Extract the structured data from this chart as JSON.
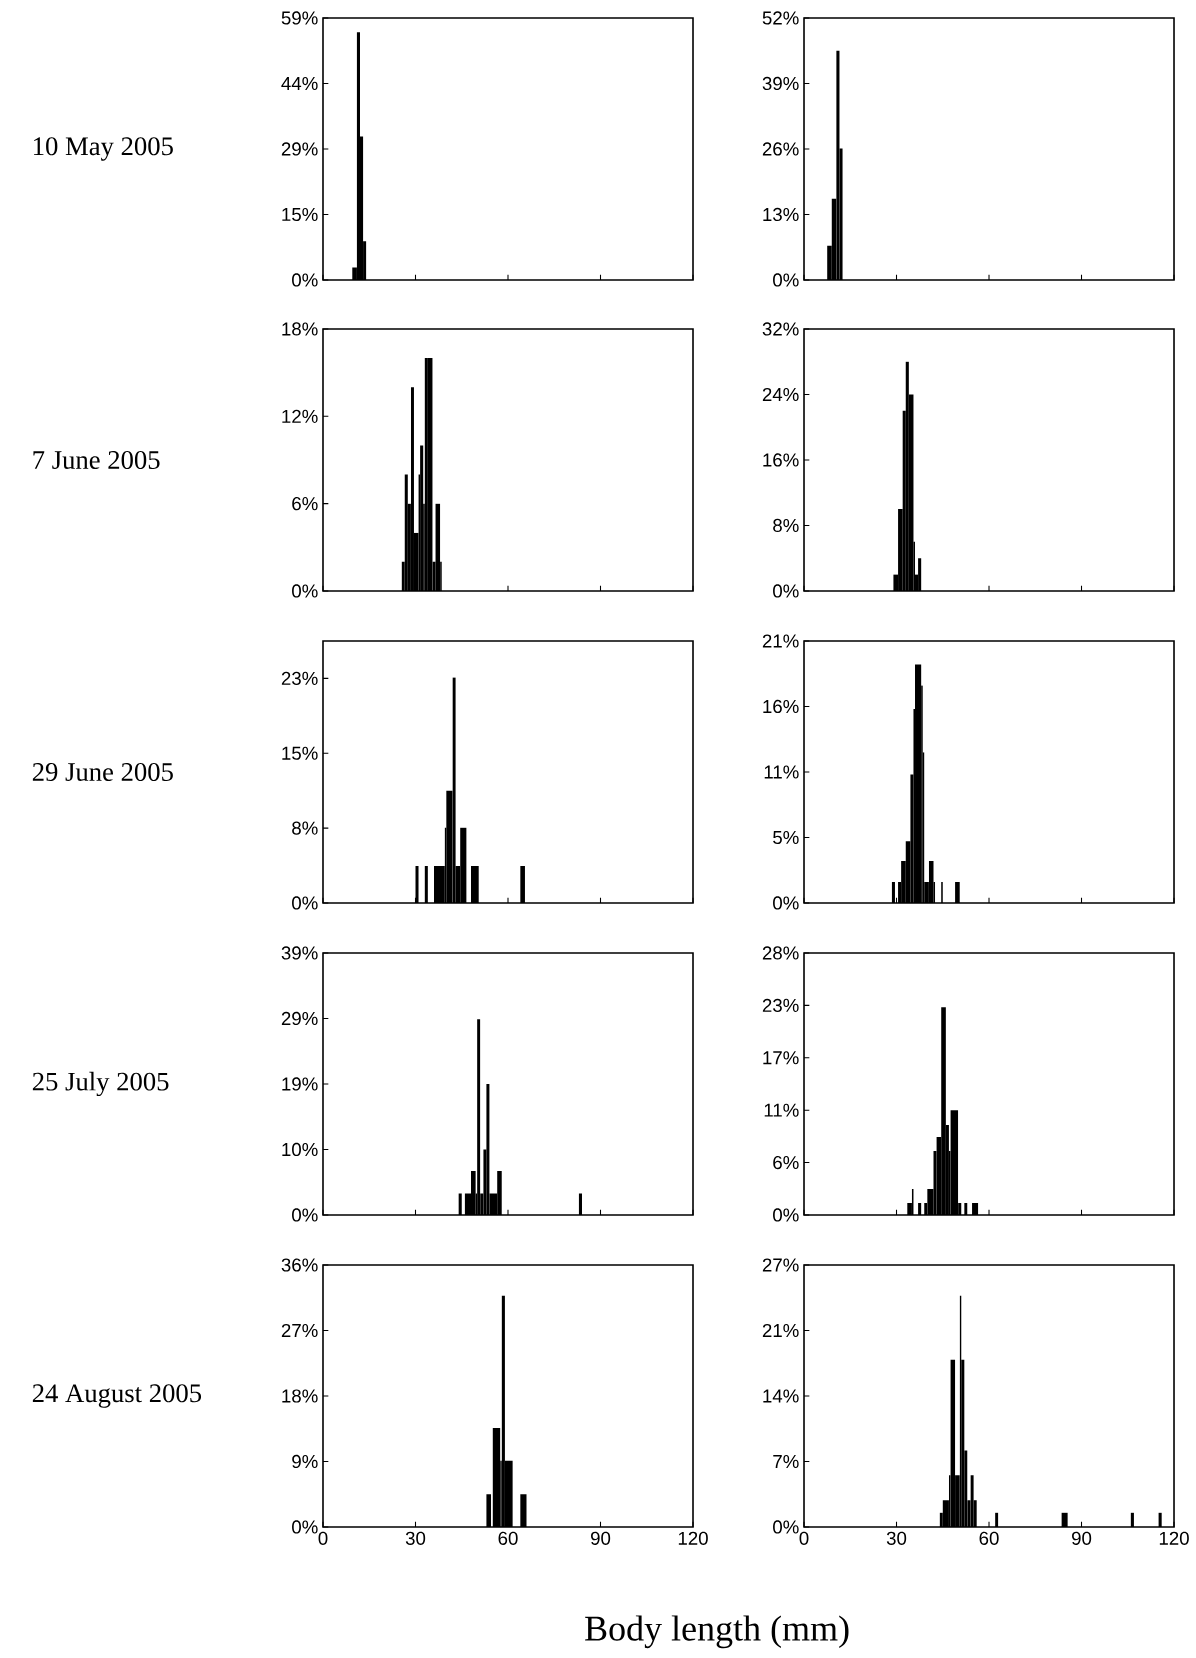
{
  "chart_data": [
    {
      "type": "histogram",
      "ylabel": "10 May 2005",
      "color": "#000000",
      "bins": [
        9.5,
        11,
        12,
        13,
        14
      ],
      "values": [
        2.8,
        55.6,
        32.2,
        8.7
      ],
      "xlim": [
        0,
        120
      ],
      "xticks": [
        0,
        30,
        60,
        90,
        120
      ],
      "ylim": [
        0,
        58.8
      ],
      "yticks": [
        {
          "value": 0,
          "label": "0%"
        },
        {
          "value": 14.7,
          "label": "15%"
        },
        {
          "value": 29.4,
          "label": "29%"
        },
        {
          "value": 44.1,
          "label": "44%"
        },
        {
          "value": 58.8,
          "label": "59%"
        }
      ],
      "tick_labels": "y"
    },
    {
      "type": "histogram",
      "color": "#000000",
      "bins": [
        7.5,
        9,
        10.5,
        11.5,
        12.5
      ],
      "values": [
        6.8,
        16.1,
        45.5,
        26.1
      ],
      "xlim": [
        0,
        120
      ],
      "xticks": [
        0,
        30,
        60,
        90,
        120
      ],
      "ylim": [
        0,
        52
      ],
      "yticks": [
        {
          "value": 0,
          "label": "0%"
        },
        {
          "value": 13,
          "label": "13%"
        },
        {
          "value": 26,
          "label": "26%"
        },
        {
          "value": 39,
          "label": "39%"
        },
        {
          "value": 52,
          "label": "52%"
        }
      ],
      "tick_labels": "y"
    },
    {
      "type": "histogram",
      "ylabel": "7 June 2005",
      "color": "#000000",
      "bins": [
        25.5,
        26.5,
        27.5,
        28.5,
        29.5,
        31,
        31.5,
        32.5,
        33,
        34,
        35.5,
        36.5,
        38,
        38.5
      ],
      "values": [
        2,
        8,
        6,
        14,
        4,
        8,
        10,
        6,
        16,
        16,
        2,
        6,
        2
      ],
      "xlim": [
        0,
        120
      ],
      "xticks": [
        0,
        30,
        60,
        90,
        120
      ],
      "ylim": [
        0,
        18
      ],
      "yticks": [
        {
          "value": 0,
          "label": "0%"
        },
        {
          "value": 6,
          "label": "6%"
        },
        {
          "value": 12,
          "label": "12%"
        },
        {
          "value": 18,
          "label": "18%"
        }
      ],
      "tick_labels": "y"
    },
    {
      "type": "histogram",
      "color": "#000000",
      "bins": [
        29,
        30.5,
        32,
        33,
        34,
        35.5,
        36,
        37,
        38
      ],
      "values": [
        2,
        10,
        22,
        28,
        24,
        6,
        2,
        4
      ],
      "xlim": [
        0,
        120
      ],
      "xticks": [
        0,
        30,
        60,
        90,
        120
      ],
      "ylim": [
        0,
        32
      ],
      "yticks": [
        {
          "value": 0,
          "label": "0%"
        },
        {
          "value": 8,
          "label": "8%"
        },
        {
          "value": 16,
          "label": "16%"
        },
        {
          "value": 24,
          "label": "24%"
        },
        {
          "value": 32,
          "label": "32%"
        }
      ],
      "tick_labels": "y"
    },
    {
      "type": "histogram",
      "ylabel": "29 June 2005",
      "color": "#000000",
      "bins": [
        30,
        31,
        33,
        34,
        36,
        39.5,
        40,
        42,
        43,
        44.5,
        46.5,
        48,
        50.5,
        64,
        65.5
      ],
      "values": [
        3.8,
        0,
        3.8,
        0,
        3.8,
        7.7,
        11.5,
        23.1,
        3.8,
        7.7,
        0,
        3.8,
        0,
        3.8
      ],
      "xlim": [
        0,
        120
      ],
      "xticks": [
        0,
        30,
        60,
        90,
        120
      ],
      "ylim": [
        0,
        26.83
      ],
      "yticks": [
        {
          "value": 0,
          "label": "0%"
        },
        {
          "value": 7.667,
          "label": "8%"
        },
        {
          "value": 15.333,
          "label": "15%"
        },
        {
          "value": 23,
          "label": "23%"
        }
      ],
      "tick_labels": "y"
    },
    {
      "type": "histogram",
      "color": "#000000",
      "bins": [
        28.5,
        29.5,
        30.5,
        31.5,
        33,
        34.5,
        35.5,
        36,
        38,
        38.5,
        39,
        40.5,
        42,
        42.5,
        44.5,
        45,
        49,
        50.5
      ],
      "values": [
        1.7,
        0,
        1.7,
        3.4,
        5.0,
        10.4,
        15.7,
        19.3,
        17.6,
        12.2,
        1.7,
        3.4,
        1.7,
        0,
        1.7,
        0,
        1.7
      ],
      "xlim": [
        0,
        120
      ],
      "xticks": [
        0,
        30,
        60,
        90,
        120
      ],
      "ylim": [
        0,
        21.2
      ],
      "yticks": [
        {
          "value": 0,
          "label": "0%"
        },
        {
          "value": 5.3,
          "label": "5%"
        },
        {
          "value": 10.6,
          "label": "11%"
        },
        {
          "value": 15.9,
          "label": "16%"
        },
        {
          "value": 21.2,
          "label": "21%"
        }
      ],
      "tick_labels": "y"
    },
    {
      "type": "histogram",
      "ylabel": "25 July 2005",
      "color": "#000000",
      "bins": [
        44,
        45,
        46,
        48,
        49.5,
        50,
        51,
        52,
        53,
        54,
        56.5,
        58,
        83,
        84
      ],
      "values": [
        3.2,
        0,
        3.2,
        6.5,
        3.2,
        29.0,
        3.2,
        9.7,
        19.4,
        3.2,
        6.5,
        0,
        3.2
      ],
      "xlim": [
        0,
        120
      ],
      "xticks": [
        0,
        30,
        60,
        90,
        120
      ],
      "ylim": [
        0,
        38.8
      ],
      "yticks": [
        {
          "value": 0,
          "label": "0%"
        },
        {
          "value": 9.7,
          "label": "10%"
        },
        {
          "value": 19.4,
          "label": "19%"
        },
        {
          "value": 29.1,
          "label": "29%"
        },
        {
          "value": 38.8,
          "label": "39%"
        }
      ],
      "tick_labels": "y"
    },
    {
      "type": "histogram",
      "color": "#000000",
      "bins": [
        33.5,
        35,
        35.5,
        37,
        38,
        39,
        40,
        42,
        43,
        44.5,
        46,
        47,
        47.5,
        50,
        51,
        52,
        53,
        54.5,
        56.5
      ],
      "values": [
        1.3,
        2.8,
        0,
        1.3,
        0,
        1.3,
        2.8,
        6.9,
        8.4,
        22.4,
        9.7,
        6.9,
        11.3,
        1.3,
        0,
        1.3,
        0,
        1.3
      ],
      "xlim": [
        0,
        120
      ],
      "xticks": [
        0,
        30,
        60,
        90,
        120
      ],
      "ylim": [
        0,
        28.25
      ],
      "yticks": [
        {
          "value": 0,
          "label": "0%"
        },
        {
          "value": 5.65,
          "label": "6%"
        },
        {
          "value": 11.3,
          "label": "11%"
        },
        {
          "value": 16.95,
          "label": "17%"
        },
        {
          "value": 22.6,
          "label": "23%"
        },
        {
          "value": 28.25,
          "label": "28%"
        }
      ],
      "tick_labels": "y"
    },
    {
      "type": "histogram",
      "ylabel": "24 August 2005",
      "xlabel": "Body length (mm)",
      "color": "#000000",
      "bins": [
        53,
        54.5,
        55,
        57.5,
        58,
        59,
        61.5,
        64,
        66
      ],
      "values": [
        4.5,
        0,
        13.6,
        9.1,
        31.8,
        9.1,
        0,
        4.5
      ],
      "xlim": [
        0,
        120
      ],
      "xticks": [
        0,
        30,
        60,
        90,
        120
      ],
      "ylim": [
        0,
        36
      ],
      "yticks": [
        {
          "value": 0,
          "label": "0%"
        },
        {
          "value": 9,
          "label": "9%"
        },
        {
          "value": 18,
          "label": "18%"
        },
        {
          "value": 27,
          "label": "27%"
        },
        {
          "value": 36,
          "label": "36%"
        }
      ]
    },
    {
      "type": "histogram",
      "color": "#000000",
      "bins": [
        44,
        45,
        47,
        47.5,
        49,
        50.5,
        51,
        52,
        53,
        54,
        55,
        56,
        62,
        63,
        83.5,
        85.5,
        106,
        107,
        115,
        116
      ],
      "values": [
        1.5,
        2.8,
        5.4,
        17.5,
        5.4,
        24.2,
        17.5,
        8.0,
        2.8,
        5.4,
        2.8,
        0,
        1.5,
        0,
        1.5,
        0,
        1.5,
        0,
        1.5
      ],
      "xlim": [
        0,
        120
      ],
      "xticks": [
        0,
        30,
        60,
        90,
        120
      ],
      "ylim": [
        0,
        27.4
      ],
      "yticks": [
        {
          "value": 0,
          "label": "0%"
        },
        {
          "value": 6.85,
          "label": "7%"
        },
        {
          "value": 13.7,
          "label": "14%"
        },
        {
          "value": 20.55,
          "label": "21%"
        },
        {
          "value": 27.4,
          "label": "27%"
        }
      ]
    }
  ]
}
